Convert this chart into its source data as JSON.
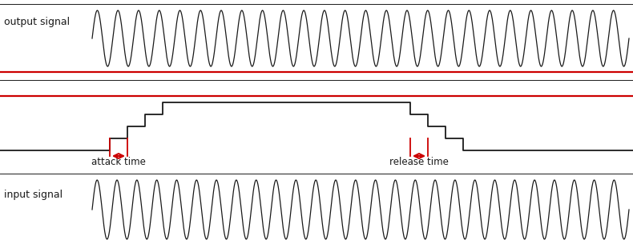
{
  "bg_color": "#ffffff",
  "line_color": "#1a1a1a",
  "red_color": "#cc0000",
  "input_label": "input signal",
  "output_label": "output signal",
  "attack_label": "attack time",
  "release_label": "release time",
  "n_cycles_input": 27,
  "n_cycles_output": 26
}
